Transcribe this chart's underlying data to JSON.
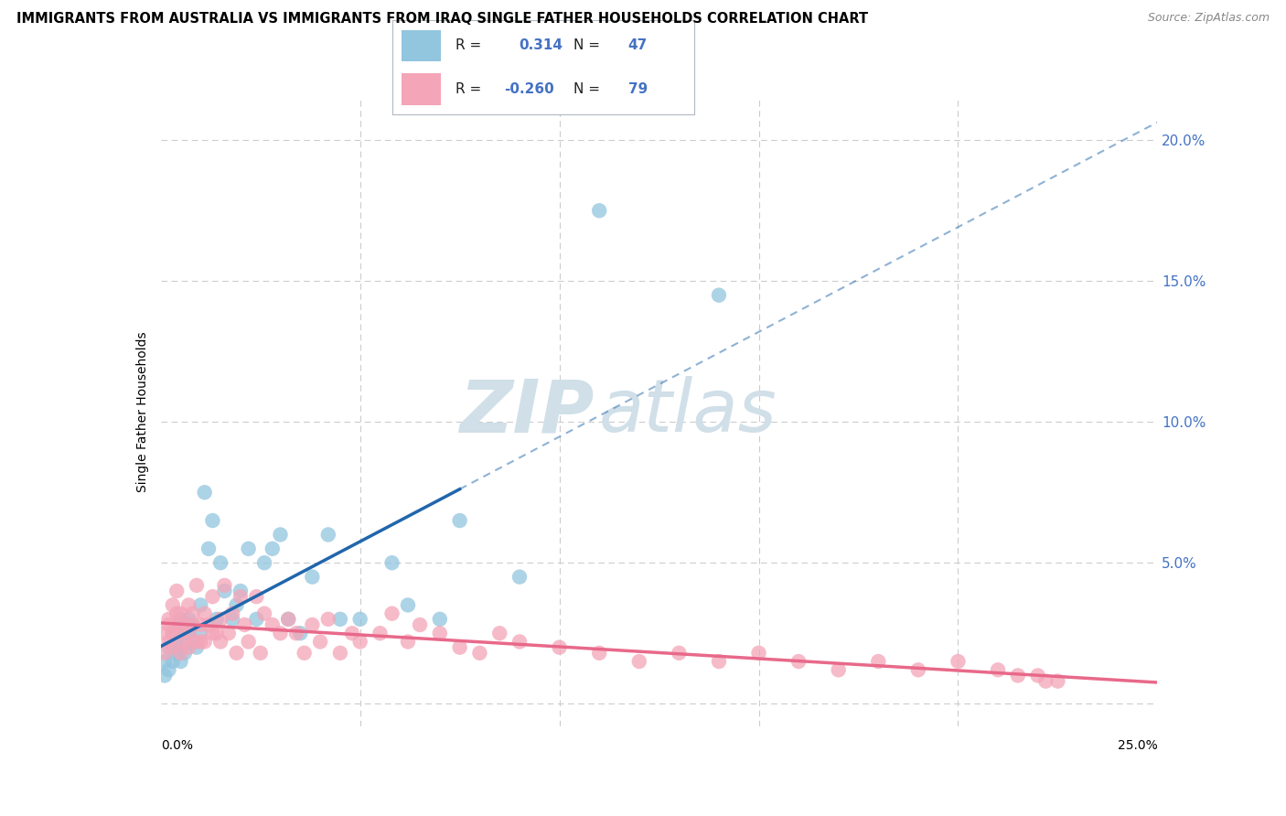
{
  "title": "IMMIGRANTS FROM AUSTRALIA VS IMMIGRANTS FROM IRAQ SINGLE FATHER HOUSEHOLDS CORRELATION CHART",
  "source": "Source: ZipAtlas.com",
  "ylabel": "Single Father Households",
  "y_ticks": [
    0.0,
    0.05,
    0.1,
    0.15,
    0.2
  ],
  "y_tick_labels": [
    "",
    "5.0%",
    "10.0%",
    "15.0%",
    "20.0%"
  ],
  "x_lim": [
    0.0,
    0.25
  ],
  "y_lim": [
    -0.008,
    0.215
  ],
  "r_australia": 0.314,
  "n_australia": 47,
  "r_iraq": -0.26,
  "n_iraq": 79,
  "color_australia": "#92c5de",
  "color_iraq": "#f4a5b8",
  "color_australia_line": "#2166ac",
  "color_iraq_line": "#e8698a",
  "color_australia_dash": "#7ab3d4",
  "watermark_zip": "ZIP",
  "watermark_atlas": "atlas",
  "watermark_color": "#d0dfe8",
  "background_color": "#ffffff",
  "title_fontsize": 10.5,
  "source_fontsize": 9,
  "legend_r1_val": "0.314",
  "legend_r2_val": "-0.260",
  "legend_n1": "47",
  "legend_n2": "79",
  "line_solid_end_aus": 0.075,
  "line_end_aus": 0.25,
  "line_end_iraq": 0.25,
  "line_start_y_aus": 0.012,
  "line_slope_aus": 0.115,
  "line_start_y_iraq": 0.026,
  "line_slope_iraq": -0.038
}
